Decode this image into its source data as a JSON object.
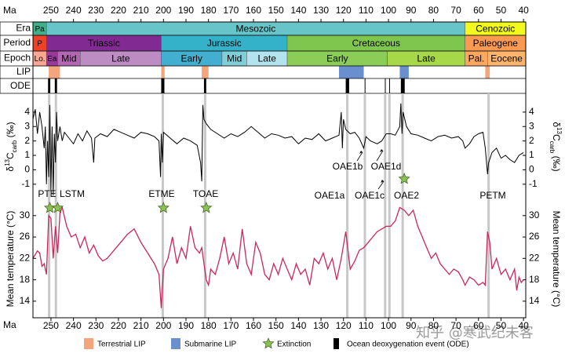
{
  "axis": {
    "label": "Ma",
    "xlim": [
      258,
      39
    ],
    "xticks": [
      250,
      240,
      230,
      220,
      210,
      200,
      190,
      180,
      170,
      160,
      150,
      140,
      130,
      120,
      110,
      100,
      90,
      80,
      70,
      60,
      50,
      40
    ]
  },
  "timescale": {
    "era": {
      "label": "Era",
      "units": [
        {
          "label": "Pa",
          "start": 258,
          "end": 252,
          "color": "#40b08c"
        },
        {
          "label": "Mesozoic",
          "start": 252,
          "end": 66,
          "color": "#67c5ca"
        },
        {
          "label": "Cenozoic",
          "start": 66,
          "end": 39,
          "color": "#f2f91d"
        }
      ]
    },
    "period": {
      "label": "Period",
      "units": [
        {
          "label": "P",
          "start": 258,
          "end": 252,
          "color": "#f04028"
        },
        {
          "label": "Triassic",
          "start": 252,
          "end": 201,
          "color": "#812b92"
        },
        {
          "label": "Jurassic",
          "start": 201,
          "end": 145,
          "color": "#34b2c9"
        },
        {
          "label": "Cretaceous",
          "start": 145,
          "end": 66,
          "color": "#7fc64e"
        },
        {
          "label": "Paleogene",
          "start": 66,
          "end": 39,
          "color": "#fd9a52"
        }
      ]
    },
    "epoch": {
      "label": "Epoch",
      "units": [
        {
          "label": "Lo.",
          "start": 258,
          "end": 252,
          "color": "#fba794"
        },
        {
          "label": "Ea",
          "start": 252,
          "end": 247,
          "color": "#983999"
        },
        {
          "label": "Mid",
          "start": 247,
          "end": 237,
          "color": "#b168b1"
        },
        {
          "label": "Late",
          "start": 237,
          "end": 201,
          "color": "#bd8cc3"
        },
        {
          "label": "Early",
          "start": 201,
          "end": 174,
          "color": "#42aed0"
        },
        {
          "label": "Mid",
          "start": 174,
          "end": 163,
          "color": "#80cfd8"
        },
        {
          "label": "Late",
          "start": 163,
          "end": 145,
          "color": "#b3e3ee"
        },
        {
          "label": "Early",
          "start": 145,
          "end": 100.5,
          "color": "#8ccd57"
        },
        {
          "label": "Late",
          "start": 100.5,
          "end": 66,
          "color": "#a6d84a"
        },
        {
          "label": "Pal.",
          "start": 66,
          "end": 56,
          "color": "#fda75f"
        },
        {
          "label": "Eocene",
          "start": 56,
          "end": 39,
          "color": "#fdb46c"
        }
      ]
    }
  },
  "lip": {
    "label": "LIP",
    "terrestrial": [
      [
        251,
        246
      ],
      [
        201,
        199.5
      ],
      [
        183,
        180
      ],
      [
        57,
        55
      ]
    ],
    "submarine": [
      [
        122,
        111
      ],
      [
        95,
        91
      ]
    ]
  },
  "ode": {
    "label": "ODE",
    "events": [
      [
        251.3,
        250.3
      ],
      [
        248.3,
        247.3
      ],
      [
        201,
        199.6
      ],
      [
        182,
        181
      ],
      [
        119,
        117.5
      ],
      [
        110.6,
        110.3
      ],
      [
        101.6,
        101.3
      ],
      [
        99.7,
        99.4
      ],
      [
        94.5,
        92.8
      ]
    ]
  },
  "event_lines": [
    250.8,
    247.8,
    200.3,
    181.5,
    118.3,
    110.5,
    101.5,
    99.6,
    93.7,
    55.5
  ],
  "chart_data": [
    {
      "type": "line",
      "ylabel": [
        "δ",
        "13",
        "C",
        "carb",
        " (‰)"
      ],
      "color": "#000000",
      "ylim": [
        -2.1,
        5.3
      ],
      "yticks": [
        -1,
        0,
        1,
        2,
        3,
        4
      ],
      "annotations": [
        "OAE1a",
        "OAE1b",
        "OAE1c",
        "OAE1d",
        "OAE2",
        "PETM"
      ],
      "x": [
        258,
        257,
        256,
        255,
        254,
        253,
        252.5,
        252,
        251.5,
        251,
        250.5,
        250,
        249.5,
        249,
        248.5,
        248,
        247.5,
        247,
        246,
        245,
        244,
        242,
        240,
        238,
        236,
        234,
        232,
        231,
        230.5,
        228,
        225,
        222,
        219,
        216,
        213,
        210,
        207,
        204,
        202,
        201.3,
        201,
        200.5,
        200,
        197,
        194,
        191,
        188,
        185,
        183.5,
        183,
        182.5,
        182,
        181,
        179,
        176,
        173,
        170,
        167,
        164,
        161,
        158,
        155,
        152,
        149,
        146,
        143,
        140,
        137,
        134,
        131,
        128,
        125,
        122,
        121,
        120.5,
        120,
        119,
        117,
        115,
        113,
        111,
        110,
        108,
        105,
        103,
        101,
        99,
        97,
        95,
        94.5,
        94,
        93.5,
        92,
        90,
        87,
        84,
        81,
        78,
        75,
        72,
        69,
        67,
        66,
        64,
        62,
        60,
        58,
        57,
        56,
        55.5,
        54,
        52,
        50,
        48,
        46,
        44,
        42,
        40
      ],
      "values": [
        3.5,
        4.2,
        2.5,
        4.0,
        3.0,
        1.5,
        3.0,
        -1.0,
        2.0,
        -0.5,
        4.5,
        -1.5,
        3.0,
        -1.8,
        2.5,
        0.5,
        4.0,
        2.0,
        3.0,
        2.0,
        2.6,
        2.2,
        1.8,
        2.5,
        2.0,
        2.7,
        2.2,
        0.5,
        2.2,
        2.5,
        2.3,
        2.8,
        2.6,
        2.4,
        2.2,
        2.6,
        2.5,
        2.3,
        2.0,
        -0.5,
        2.5,
        0.5,
        2.6,
        2.2,
        1.8,
        2.2,
        2.0,
        1.7,
        0.5,
        -0.8,
        4.5,
        3.5,
        3.2,
        2.8,
        2.5,
        2.2,
        2.5,
        2.3,
        2.6,
        3.0,
        2.6,
        2.2,
        2.5,
        2.4,
        2.2,
        2.3,
        1.8,
        2.2,
        2.1,
        2.5,
        2.0,
        2.2,
        2.4,
        4.0,
        1.5,
        3.5,
        2.8,
        2.5,
        2.6,
        2.2,
        1.5,
        2.3,
        2.0,
        1.8,
        2.0,
        2.5,
        2.5,
        2.4,
        3.0,
        4.6,
        2.5,
        4.0,
        3.0,
        2.5,
        2.4,
        2.2,
        2.0,
        2.3,
        2.4,
        2.2,
        2.3,
        2.0,
        1.5,
        1.8,
        2.3,
        2.5,
        2.6,
        1.5,
        -0.3,
        0.5,
        1.2,
        1.5,
        0.8,
        1.0,
        0.7,
        0.5,
        1.0,
        1.2
      ]
    },
    {
      "type": "line",
      "ylabel": "Mean temperature (°C)",
      "color": "#c8285c",
      "ylim": [
        10.9,
        32.9
      ],
      "yticks": [
        14,
        18,
        22,
        26,
        30
      ],
      "annotations": [
        "PTE",
        "LSTM",
        "ETME",
        "TOAE"
      ],
      "x": [
        258,
        256,
        255,
        254,
        253,
        252,
        251,
        250,
        249,
        248,
        247,
        246,
        245,
        243,
        241,
        239,
        237,
        235,
        233,
        231,
        229,
        227,
        225,
        222,
        219,
        216,
        213,
        210,
        207,
        204,
        202,
        201,
        200,
        198,
        196,
        194,
        192,
        190,
        188,
        186,
        184,
        183,
        181,
        180,
        179,
        177,
        175,
        173,
        171,
        169,
        167,
        165,
        163,
        161,
        159,
        157,
        155,
        153,
        151,
        149,
        147,
        145,
        143,
        141,
        139,
        137,
        135,
        133,
        131,
        129,
        127,
        125,
        123,
        121,
        119,
        117,
        115,
        113,
        111,
        109,
        107,
        105,
        103,
        101,
        99,
        97,
        95,
        93,
        91,
        89,
        87,
        85,
        83,
        81,
        79,
        77,
        75,
        73,
        71,
        69,
        67,
        66,
        64,
        62,
        60,
        58,
        57,
        56,
        55,
        54,
        52,
        50,
        48,
        46,
        44,
        43,
        42,
        41,
        40
      ],
      "values": [
        22,
        23.4,
        23,
        20.5,
        21,
        19,
        30,
        29.5,
        22,
        28,
        23,
        30.5,
        31.5,
        28,
        26,
        26.5,
        24,
        26,
        23,
        24.5,
        22.5,
        21.5,
        22,
        23.5,
        25,
        26.5,
        27.5,
        25,
        23,
        21,
        19,
        12.7,
        20,
        22,
        26,
        21,
        24,
        22,
        28,
        24,
        23,
        24,
        18,
        17,
        20,
        19,
        22,
        26,
        21,
        23,
        20,
        27.5,
        21,
        19,
        25,
        23,
        19,
        18,
        21,
        19,
        22,
        20,
        18,
        21,
        19,
        20,
        17,
        22,
        21,
        23,
        20,
        22,
        18,
        22,
        27,
        20,
        21.5,
        23.5,
        24,
        25,
        26,
        27,
        27.5,
        28,
        28,
        29,
        31.5,
        31,
        30,
        31,
        28,
        26,
        24,
        22,
        23,
        21,
        20,
        19,
        20,
        19.5,
        18,
        17,
        18.5,
        18,
        17,
        17.5,
        17,
        27,
        25,
        20,
        22,
        19,
        20,
        18,
        20,
        16,
        18.5,
        17.5,
        18
      ]
    }
  ],
  "extinctions": [
    250.5,
    247,
    200,
    181,
    93
  ],
  "legend": [
    {
      "label": "Terrestrial LIP",
      "color": "#f4a57c"
    },
    {
      "label": "Submarine LIP",
      "color": "#6a8fcf"
    },
    {
      "label": "Extinction",
      "color": "#8cc152"
    },
    {
      "label": "Ocean deoxygenation event (ODE)",
      "color": "#000000"
    }
  ],
  "watermark": "知乎 @寒武纪未客"
}
